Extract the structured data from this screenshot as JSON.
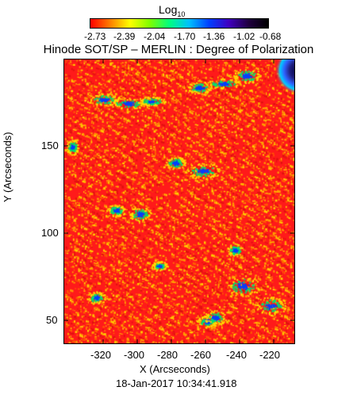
{
  "colorbar": {
    "title": "Log",
    "title_sub": "10",
    "tick_labels": [
      "-2.73",
      "-2.39",
      "-2.04",
      "-1.70",
      "-1.36",
      "-1.02",
      "-0.68"
    ],
    "gradient": [
      "#ff0000",
      "#ff7f00",
      "#ffff00",
      "#80ff00",
      "#00ff80",
      "#00c0ff",
      "#0040ff",
      "#4000c0",
      "#200040",
      "#000000"
    ]
  },
  "plot": {
    "title": "Hinode SOT/SP – MERLIN : Degree of Polarization",
    "xlabel": "X (Arcseconds)",
    "ylabel": "Y (Arcseconds)",
    "x_ticks": [
      "-320",
      "-300",
      "-280",
      "-260",
      "-240",
      "-220"
    ],
    "y_ticks": [
      "150",
      "100",
      "50"
    ],
    "x_range": [
      -341,
      -206
    ],
    "y_range": [
      34,
      197
    ],
    "timestamp": "18-Jan-2017 10:34:41.918",
    "base_color": "#ff1a1a",
    "speckle_colors": [
      "#ffa000",
      "#ffcc00",
      "#ff6000",
      "#e01010"
    ],
    "strong_color": "#0040ff",
    "mid_color": "#00e070",
    "dark_color": "#000040"
  }
}
